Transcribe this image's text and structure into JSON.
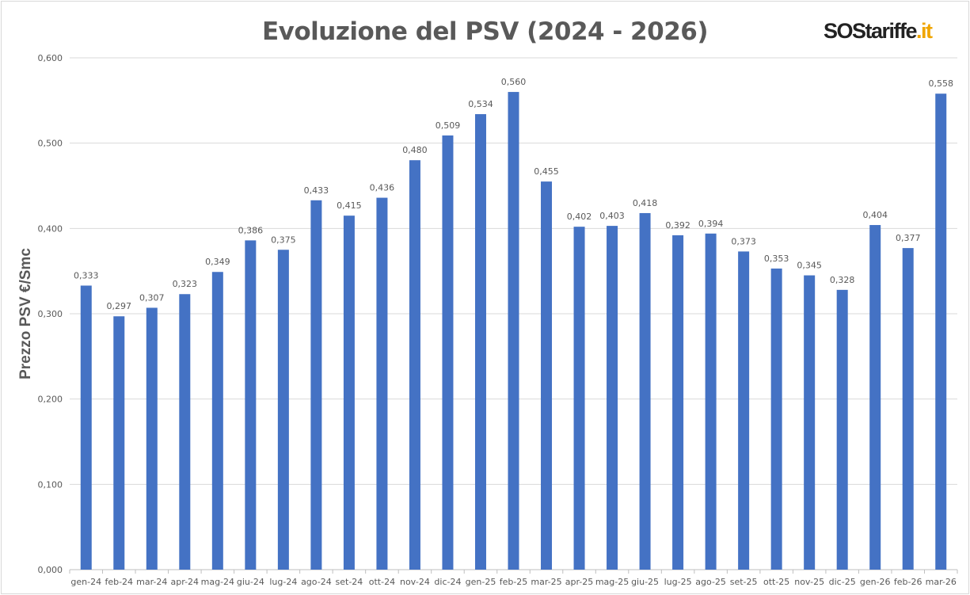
{
  "chart_data": {
    "type": "bar",
    "title": "Evoluzione del PSV (2024 - 2026)",
    "xlabel": "",
    "ylabel": "Prezzo PSV €/Smc",
    "ylim": [
      0,
      0.6
    ],
    "yticks": [
      "0,000",
      "0,100",
      "0,200",
      "0,300",
      "0,400",
      "0,500",
      "0,600"
    ],
    "grid": true,
    "bar_color": "#4472c4",
    "categories": [
      "gen-24",
      "feb-24",
      "mar-24",
      "apr-24",
      "mag-24",
      "giu-24",
      "lug-24",
      "ago-24",
      "set-24",
      "ott-24",
      "nov-24",
      "dic-24",
      "gen-25",
      "feb-25",
      "mar-25",
      "apr-25",
      "mag-25",
      "giu-25",
      "lug-25",
      "ago-25",
      "set-25",
      "ott-25",
      "nov-25",
      "dic-25",
      "gen-26",
      "feb-26",
      "mar-26"
    ],
    "values": [
      0.333,
      0.297,
      0.307,
      0.323,
      0.349,
      0.386,
      0.375,
      0.433,
      0.415,
      0.436,
      0.48,
      0.509,
      0.534,
      0.56,
      0.455,
      0.402,
      0.403,
      0.418,
      0.392,
      0.394,
      0.373,
      0.353,
      0.345,
      0.328,
      0.404,
      0.377,
      0.558
    ],
    "data_labels": [
      "0,333",
      "0,297",
      "0,307",
      "0,323",
      "0,349",
      "0,386",
      "0,375",
      "0,433",
      "0,415",
      "0,436",
      "0,480",
      "0,509",
      "0,534",
      "0,560",
      "0,455",
      "0,402",
      "0,403",
      "0,418",
      "0,392",
      "0,394",
      "0,373",
      "0,353",
      "0,345",
      "0,328",
      "0,404",
      "0,377",
      "0,558"
    ]
  },
  "logo": {
    "main": "SOStariffe",
    "suffix": ".it"
  }
}
